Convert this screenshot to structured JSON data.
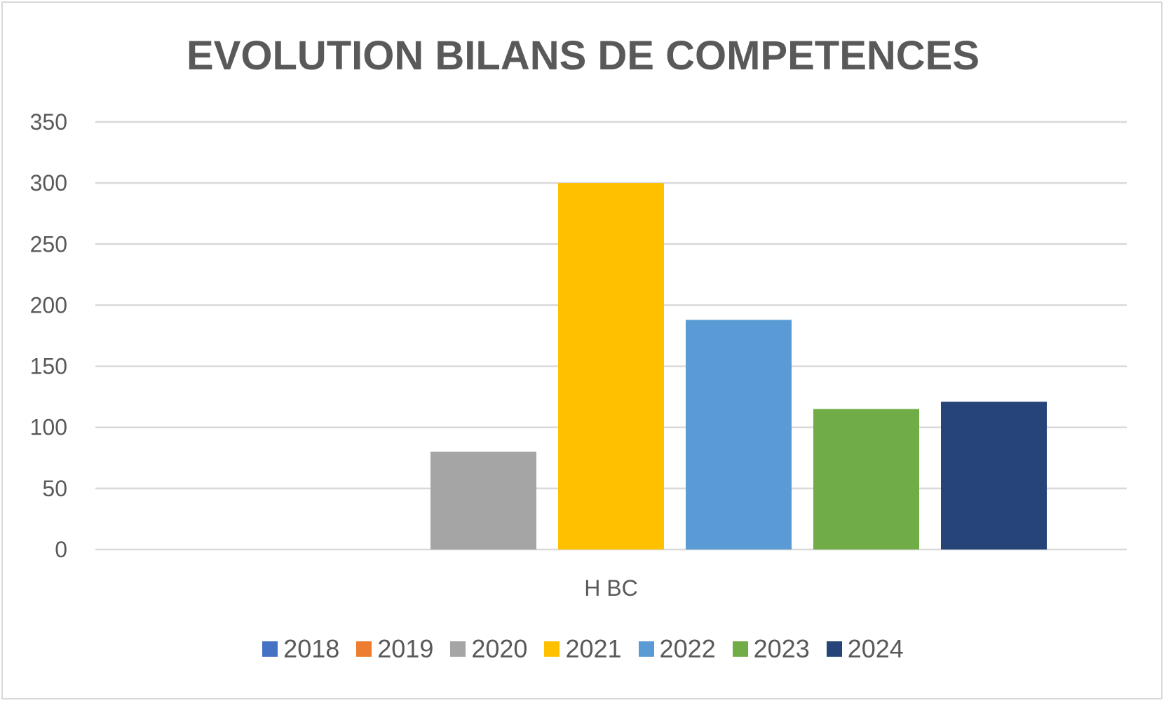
{
  "chart_data": {
    "type": "bar",
    "title": "EVOLUTION BILANS DE COMPETENCES",
    "xlabel": "",
    "ylabel": "",
    "categories": [
      "H BC"
    ],
    "series": [
      {
        "name": "2018",
        "values": [
          0
        ],
        "color": "#4472c4"
      },
      {
        "name": "2019",
        "values": [
          0
        ],
        "color": "#ed7d31"
      },
      {
        "name": "2020",
        "values": [
          80
        ],
        "color": "#a5a5a5"
      },
      {
        "name": "2021",
        "values": [
          300
        ],
        "color": "#ffc000"
      },
      {
        "name": "2022",
        "values": [
          188
        ],
        "color": "#5b9bd5"
      },
      {
        "name": "2023",
        "values": [
          115
        ],
        "color": "#70ad47"
      },
      {
        "name": "2024",
        "values": [
          121
        ],
        "color": "#264478"
      }
    ],
    "ylim": [
      0,
      350
    ],
    "yticks": [
      "0",
      "50",
      "100",
      "150",
      "200",
      "250",
      "300",
      "350"
    ],
    "grid": true,
    "legend": "bottom"
  }
}
